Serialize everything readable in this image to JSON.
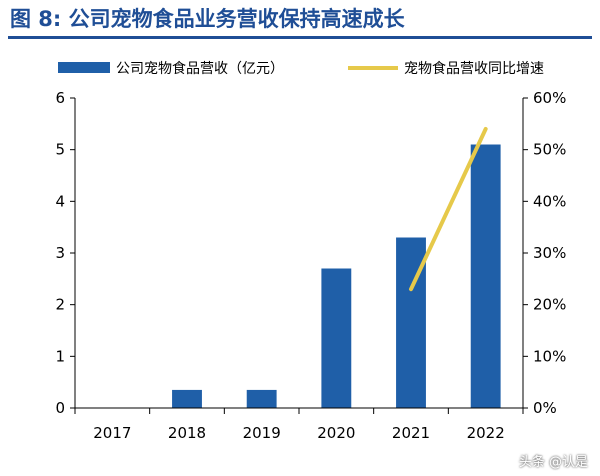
{
  "title": "图 8: 公司宠物食品业务营收保持高速成长",
  "watermark": "头条 @认是",
  "colors": {
    "title": "#1f4e96",
    "bar": "#1f5fa8",
    "line": "#e6c94a",
    "axis": "#000000"
  },
  "chart_data": {
    "type": "bar",
    "categories": [
      "2017",
      "2018",
      "2019",
      "2020",
      "2021",
      "2022"
    ],
    "series": [
      {
        "name": "公司宠物食品营收（亿元）",
        "type": "bar",
        "axis": "left",
        "values": [
          0,
          0.35,
          0.35,
          2.7,
          3.3,
          5.1
        ]
      },
      {
        "name": "宠物食品营收同比增速",
        "type": "line",
        "axis": "right",
        "values": [
          null,
          null,
          null,
          null,
          0.23,
          0.54
        ]
      }
    ],
    "y_left": {
      "ylim": [
        0,
        6
      ],
      "ticks": [
        "0",
        "1",
        "2",
        "3",
        "4",
        "5",
        "6"
      ]
    },
    "y_right": {
      "ylim": [
        0,
        0.6
      ],
      "ticks": [
        "0%",
        "10%",
        "20%",
        "30%",
        "40%",
        "50%",
        "60%"
      ]
    },
    "legend_position": "top",
    "grid": false
  }
}
